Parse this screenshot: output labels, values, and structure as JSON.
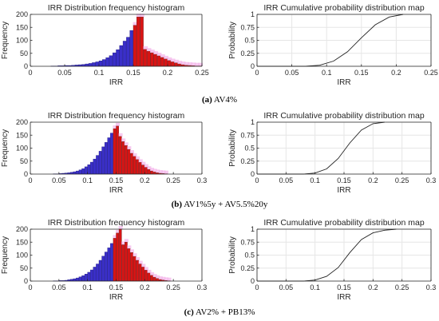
{
  "colors": {
    "blue": "#3a2fc9",
    "red": "#d81414",
    "dark": "#6b1f1f",
    "pink": "#f3b3ea",
    "axis": "#262626",
    "grid": "#e6e6e6",
    "cdf": "#222222"
  },
  "rows": [
    {
      "caption_letter": "(a)",
      "caption_text": "AV4%"
    },
    {
      "caption_letter": "(b)",
      "caption_text": "AV1%5y + AV5.5%20y"
    },
    {
      "caption_letter": "(c)",
      "caption_text": "AV2% + PB13%"
    }
  ],
  "chart_data": [
    {
      "type": "bar",
      "panel": "a-hist",
      "title": "IRR Distribution frequency histogram",
      "xlabel": "IRR",
      "ylabel": "Frequency",
      "xlim": [
        0,
        0.25
      ],
      "ylim": [
        0,
        200
      ],
      "xticks": [
        "0",
        "0.05",
        "0.1",
        "0.15",
        "0.2",
        "0.25"
      ],
      "yticks": [
        "0",
        "50",
        "100",
        "150",
        "200"
      ],
      "split_at": 0.15,
      "bins": {
        "start": 0.03,
        "width": 0.005,
        "values": [
          1,
          1,
          2,
          2,
          3,
          3,
          4,
          5,
          6,
          7,
          9,
          11,
          14,
          17,
          21,
          26,
          33,
          41,
          52,
          64,
          80,
          97,
          112,
          138,
          158,
          190,
          190,
          65,
          58,
          52,
          46,
          40,
          34,
          28,
          22,
          17,
          13,
          9,
          6,
          4,
          3,
          2,
          1,
          1
        ]
      }
    },
    {
      "type": "line",
      "panel": "a-cdf",
      "title": "IRR Cumulative probability distribution map",
      "xlabel": "IRR",
      "ylabel": "Probability",
      "xlim": [
        0,
        0.25
      ],
      "ylim": [
        0,
        1
      ],
      "xticks": [
        "0",
        "0.05",
        "0.1",
        "0.15",
        "0.2",
        "0.25"
      ],
      "yticks": [
        "0",
        "0.25",
        "0.5",
        "0.75",
        "1"
      ],
      "x": [
        0.07,
        0.09,
        0.11,
        0.13,
        0.15,
        0.17,
        0.19,
        0.21
      ],
      "y": [
        0.0,
        0.02,
        0.1,
        0.28,
        0.55,
        0.8,
        0.95,
        1.0
      ]
    },
    {
      "type": "bar",
      "panel": "b-hist",
      "title": "IRR Distribution frequency histogram",
      "xlabel": "IRR",
      "ylabel": "Frequency",
      "xlim": [
        0,
        0.3
      ],
      "ylim": [
        0,
        200
      ],
      "xticks": [
        "0",
        "0.05",
        "0.1",
        "0.15",
        "0.2",
        "0.25",
        "0.3"
      ],
      "yticks": [
        "0",
        "50",
        "100",
        "150",
        "200"
      ],
      "split_at": 0.145,
      "bins": {
        "start": 0.04,
        "width": 0.005,
        "values": [
          1,
          1,
          2,
          3,
          4,
          5,
          7,
          9,
          12,
          16,
          21,
          28,
          36,
          46,
          58,
          72,
          88,
          105,
          122,
          140,
          158,
          175,
          185,
          145,
          125,
          110,
          95,
          80,
          68,
          56,
          45,
          35,
          26,
          18,
          12,
          8,
          5,
          3,
          2,
          1
        ]
      }
    },
    {
      "type": "line",
      "panel": "b-cdf",
      "title": "IRR Cumulative probability distribution map",
      "xlabel": "IRR",
      "ylabel": "Probability",
      "xlim": [
        0,
        0.3
      ],
      "ylim": [
        0,
        1
      ],
      "xticks": [
        "0",
        "0.05",
        "0.1",
        "0.15",
        "0.2",
        "0.25",
        "0.3"
      ],
      "yticks": [
        "0",
        "0.25",
        "0.5",
        "0.75",
        "1"
      ],
      "x": [
        0.08,
        0.1,
        0.12,
        0.14,
        0.16,
        0.18,
        0.2,
        0.22
      ],
      "y": [
        0.0,
        0.02,
        0.1,
        0.3,
        0.6,
        0.85,
        0.97,
        1.0
      ]
    },
    {
      "type": "bar",
      "panel": "c-hist",
      "title": "IRR Distribution frequency histogram",
      "xlabel": "IRR",
      "ylabel": "Frequency",
      "xlim": [
        0,
        0.3
      ],
      "ylim": [
        0,
        200
      ],
      "xticks": [
        "0",
        "0.05",
        "0.1",
        "0.15",
        "0.2",
        "0.25",
        "0.3"
      ],
      "yticks": [
        "0",
        "50",
        "100",
        "150",
        "200"
      ],
      "split_at": 0.145,
      "bins": {
        "start": 0.04,
        "width": 0.005,
        "values": [
          1,
          1,
          2,
          2,
          3,
          5,
          7,
          9,
          12,
          16,
          21,
          27,
          34,
          43,
          54,
          66,
          80,
          96,
          112,
          128,
          145,
          165,
          185,
          205,
          140,
          150,
          125,
          110,
          95,
          80,
          66,
          54,
          42,
          31,
          22,
          15,
          10,
          6,
          4,
          2,
          1
        ]
      }
    },
    {
      "type": "line",
      "panel": "c-cdf",
      "title": "IRR Cumulative probability distribution map",
      "xlabel": "IRR",
      "ylabel": "Probability",
      "xlim": [
        0,
        0.3
      ],
      "ylim": [
        0,
        1
      ],
      "xticks": [
        "0",
        "0.05",
        "0.1",
        "0.15",
        "0.2",
        "0.25",
        "0.3"
      ],
      "yticks": [
        "0",
        "0.25",
        "0.5",
        "0.75",
        "1"
      ],
      "x": [
        0.08,
        0.1,
        0.12,
        0.14,
        0.16,
        0.18,
        0.2,
        0.22,
        0.24
      ],
      "y": [
        0.0,
        0.02,
        0.09,
        0.26,
        0.55,
        0.8,
        0.93,
        0.98,
        1.0
      ]
    }
  ]
}
